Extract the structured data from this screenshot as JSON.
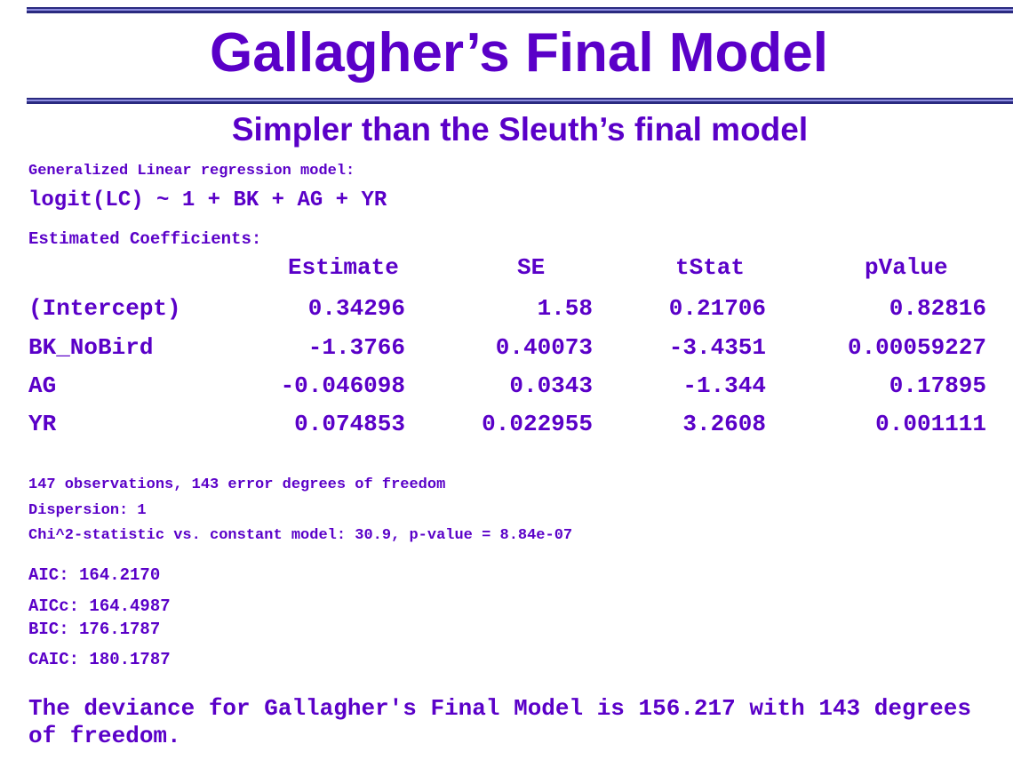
{
  "title": "Gallagher’s Final Model",
  "subtitle": "Simpler than the Sleuth’s final model",
  "model_type": "Generalized Linear regression model:",
  "formula": "logit(LC) ~ 1 + BK + AG + YR",
  "coef_heading": "Estimated Coefficients:",
  "table": {
    "headers": [
      "Estimate",
      "SE",
      "tStat",
      "pValue"
    ],
    "rows": [
      {
        "name": "(Intercept)",
        "estimate": "0.34296",
        "se": "1.58",
        "tstat": "0.21706",
        "pvalue": "0.82816"
      },
      {
        "name": "BK_NoBird",
        "estimate": "-1.3766",
        "se": "0.40073",
        "tstat": "-3.4351",
        "pvalue": "0.00059227"
      },
      {
        "name": "AG",
        "estimate": "-0.046098",
        "se": "0.0343",
        "tstat": "-1.344",
        "pvalue": "0.17895"
      },
      {
        "name": "YR",
        "estimate": "0.074853",
        "se": "0.022955",
        "tstat": "3.2608",
        "pvalue": "0.001111"
      }
    ]
  },
  "stats": {
    "observations": "147 observations, 143 error degrees of freedom",
    "dispersion": "Dispersion: 1",
    "chi2": "Chi^2-statistic vs. constant model: 30.9, p-value = 8.84e-07",
    "aic": "AIC: 164.2170",
    "aicc": "AICc: 164.4987",
    "bic": "BIC: 176.1787",
    "caic": "CAIC: 180.1787"
  },
  "conclusion": "The deviance for Gallagher's Final Model is 156.217 with 143 degrees of freedom."
}
